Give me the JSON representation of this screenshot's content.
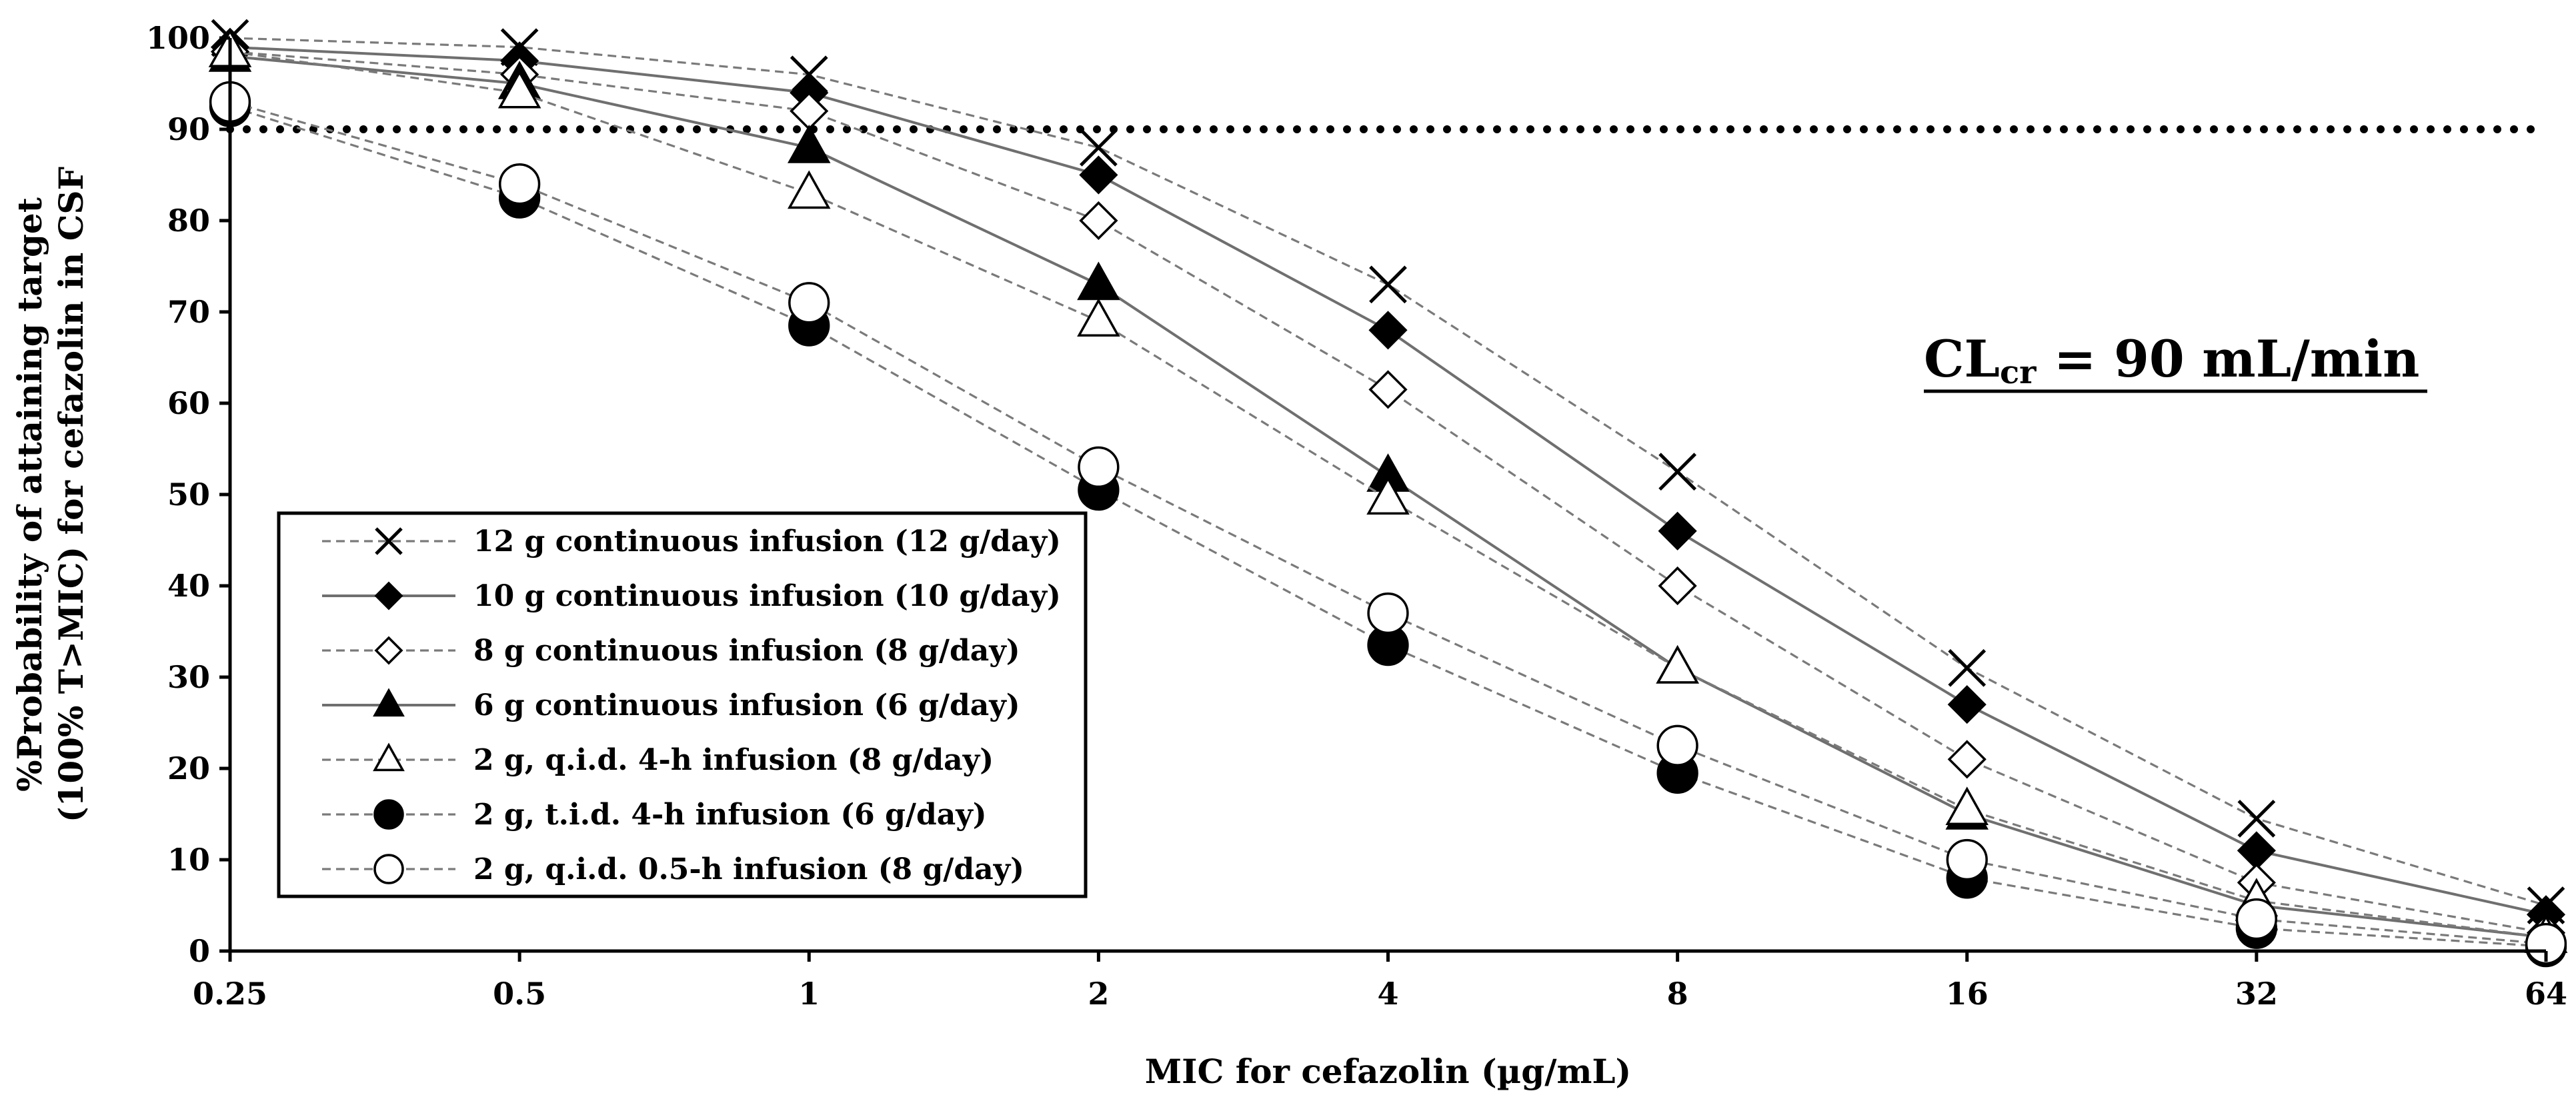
{
  "chart_data": {
    "type": "line",
    "title": "",
    "xlabel": "MIC for cefazolin (µg/mL)",
    "ylabel_line1": "%Probability of attaining target",
    "ylabel_line2": "(100% T>MIC) for cefazolin in CSF",
    "x_scale": "log2",
    "categories": [
      "0.25",
      "0.5",
      "1",
      "2",
      "4",
      "8",
      "16",
      "32",
      "64"
    ],
    "x": [
      0.25,
      0.5,
      1,
      2,
      4,
      8,
      16,
      32,
      64
    ],
    "ylim": [
      0,
      100
    ],
    "yticks": [
      0,
      10,
      20,
      30,
      40,
      50,
      60,
      70,
      80,
      90,
      100
    ],
    "grid": false,
    "target_line": {
      "y": 90,
      "style": "dotted"
    },
    "annotation": {
      "main": "CL",
      "subscript": "cr",
      "rest": " = 90 mL/min"
    },
    "legend_position": "bottom-left",
    "series": [
      {
        "name": "12 g continuous infusion (12 g/day)",
        "marker": "cross",
        "line": "dashed",
        "values": [
          100,
          99,
          96,
          88,
          73,
          52.5,
          31,
          14.5,
          5
        ]
      },
      {
        "name": "10 g continuous infusion (10 g/day)",
        "marker": "diamond-filled",
        "line": "solid",
        "values": [
          99,
          97.5,
          94,
          85,
          68,
          46,
          27,
          11,
          4
        ]
      },
      {
        "name": "8 g continuous infusion (8 g/day)",
        "marker": "diamond-open",
        "line": "dashed",
        "values": [
          98.5,
          96,
          92,
          80,
          61.5,
          40,
          21,
          7.5,
          2
        ]
      },
      {
        "name": "6 g continuous infusion (6 g/day)",
        "marker": "triangle-filled",
        "line": "solid",
        "values": [
          98,
          95,
          88,
          73,
          52,
          31,
          15,
          5,
          1.5
        ]
      },
      {
        "name": "2 g, q.i.d. 4-h infusion (8 g/day)",
        "marker": "triangle-open",
        "line": "dashed",
        "values": [
          98.5,
          94,
          83,
          69,
          49.5,
          31,
          15.5,
          5.5,
          1.5
        ]
      },
      {
        "name": "2 g, t.i.d. 4-h infusion (6 g/day)",
        "marker": "circle-filled",
        "line": "dashed",
        "values": [
          92.5,
          82.5,
          68.5,
          50.5,
          33.5,
          19.5,
          8,
          2.5,
          0.5
        ]
      },
      {
        "name": "2 g, q.i.d. 0.5-h infusion (8 g/day)",
        "marker": "circle-open",
        "line": "dashed",
        "values": [
          93,
          84,
          71,
          53,
          37,
          22.5,
          10,
          3.5,
          0.8
        ]
      }
    ]
  }
}
